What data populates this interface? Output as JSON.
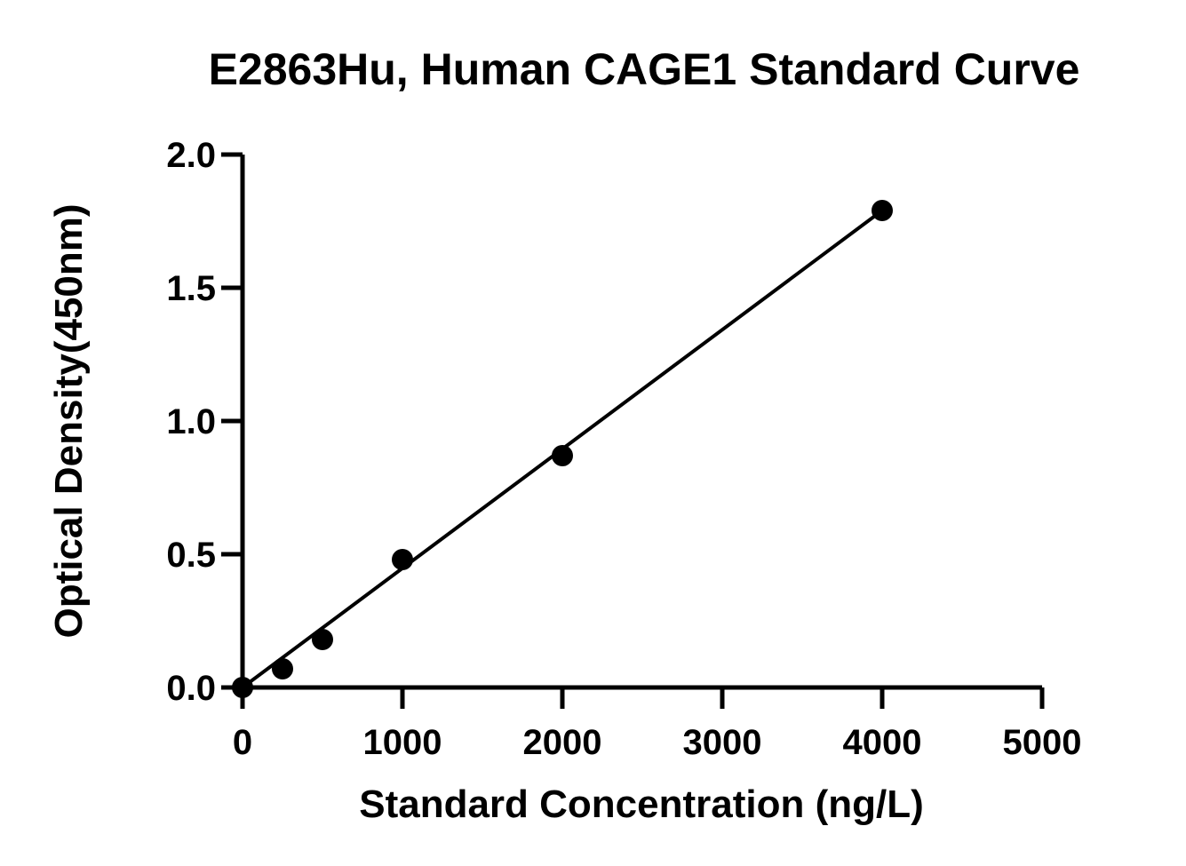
{
  "chart_data": {
    "type": "scatter",
    "title": "E2863Hu, Human CAGE1 Standard Curve",
    "xlabel": "Standard Concentration (ng/L)",
    "ylabel": "Optical Density(450nm)",
    "xlim": [
      0,
      5000
    ],
    "ylim": [
      0,
      2.0
    ],
    "xticks": [
      0,
      1000,
      2000,
      3000,
      4000,
      5000
    ],
    "yticks": [
      0.0,
      0.5,
      1.0,
      1.5,
      2.0
    ],
    "xtick_labels": [
      "0",
      "1000",
      "2000",
      "3000",
      "4000",
      "5000"
    ],
    "ytick_labels": [
      "0.0",
      "0.5",
      "1.0",
      "1.5",
      "2.0"
    ],
    "grid": false,
    "series": [
      {
        "x": [
          0,
          250,
          500,
          1000,
          2000,
          4000
        ],
        "y": [
          0.0,
          0.07,
          0.18,
          0.48,
          0.87,
          1.79
        ],
        "marker": "circle",
        "color": "#000000"
      }
    ],
    "fit_line": {
      "x": [
        0,
        4000
      ],
      "y": [
        0.0,
        1.79
      ],
      "color": "#000000"
    }
  }
}
